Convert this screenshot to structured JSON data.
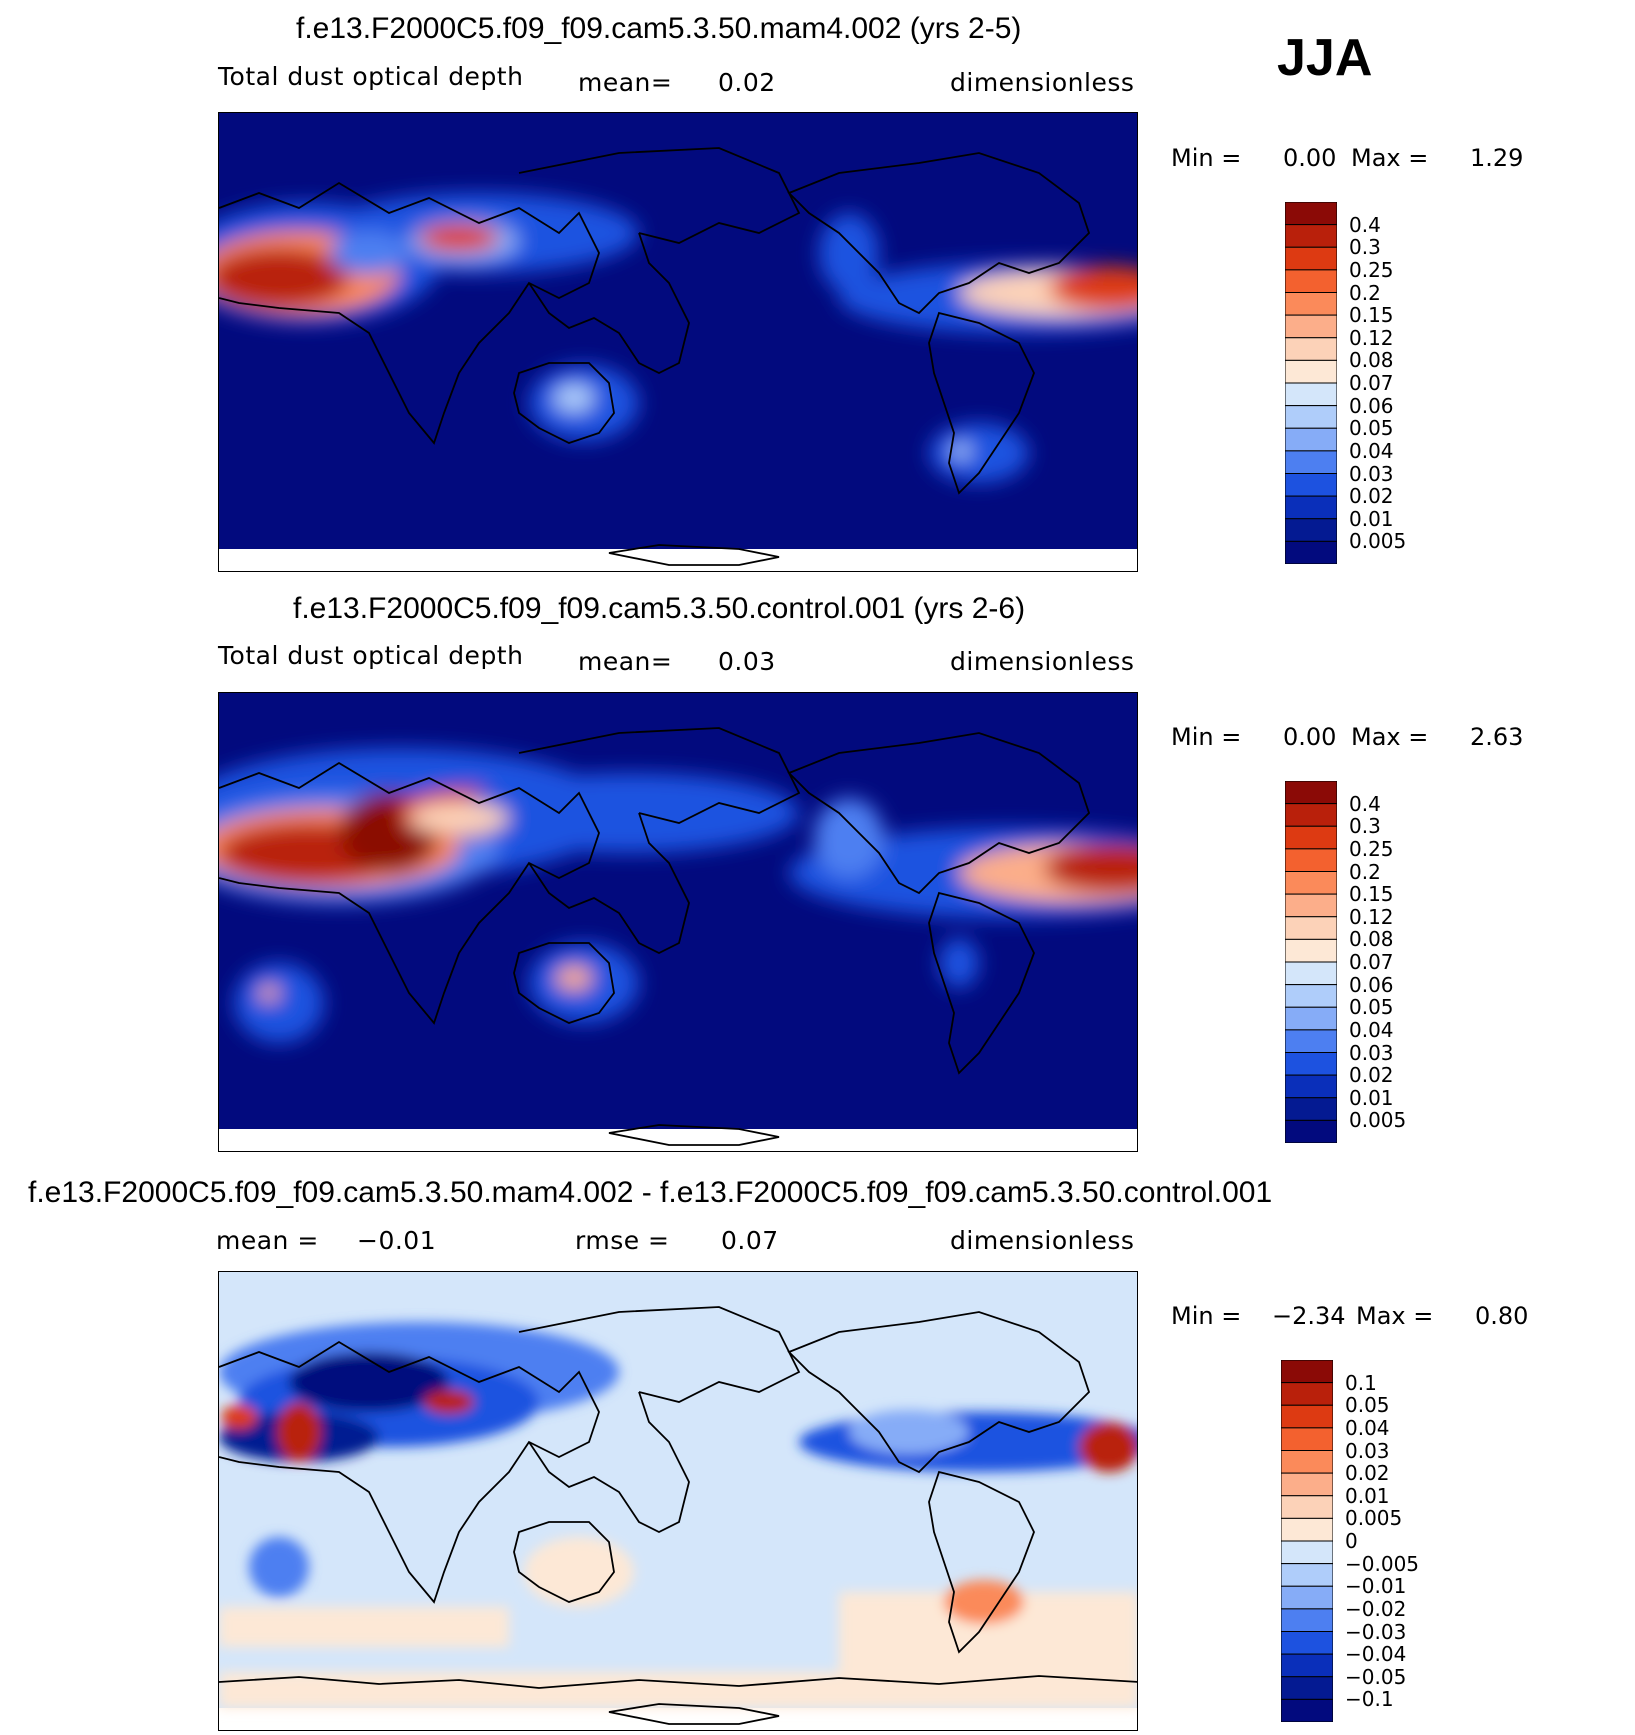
{
  "season": "JJA",
  "panels": [
    {
      "title": "f.e13.F2000C5.f09_f09.cam5.3.50.mam4.002 (yrs 2-5)",
      "variable": "Total dust optical depth",
      "stat1_label": "mean=",
      "stat1_value": "0.02",
      "stat2_label": "",
      "stat2_value": "",
      "units": "dimensionless",
      "min_label": "Min =",
      "min_value": "0.00",
      "max_label": "Max =",
      "max_value": "1.29",
      "colorbar": {
        "labels": [
          "0.4",
          "0.3",
          "0.25",
          "0.2",
          "0.15",
          "0.12",
          "0.08",
          "0.07",
          "0.06",
          "0.05",
          "0.04",
          "0.03",
          "0.02",
          "0.01",
          "0.005"
        ],
        "colors": [
          "#8b0a06",
          "#b9200b",
          "#dd3a12",
          "#f3612f",
          "#fb8a5a",
          "#fcae8a",
          "#fcd2b8",
          "#fde8d6",
          "#d4e6fa",
          "#afcdfa",
          "#86acf7",
          "#4d7ff1",
          "#1d52e0",
          "#0a2fba",
          "#041a92",
          "#020a7e"
        ]
      },
      "map": {
        "background": "#020a7e",
        "hotspots": []
      }
    },
    {
      "title": "f.e13.F2000C5.f09_f09.cam5.3.50.control.001 (yrs 2-6)",
      "variable": "Total dust optical depth",
      "stat1_label": "mean=",
      "stat1_value": "0.03",
      "stat2_label": "",
      "stat2_value": "",
      "units": "dimensionless",
      "min_label": "Min =",
      "min_value": "0.00",
      "max_label": "Max =",
      "max_value": "2.63",
      "colorbar": {
        "labels": [
          "0.4",
          "0.3",
          "0.25",
          "0.2",
          "0.15",
          "0.12",
          "0.08",
          "0.07",
          "0.06",
          "0.05",
          "0.04",
          "0.03",
          "0.02",
          "0.01",
          "0.005"
        ],
        "colors": [
          "#8b0a06",
          "#b9200b",
          "#dd3a12",
          "#f3612f",
          "#fb8a5a",
          "#fcae8a",
          "#fcd2b8",
          "#fde8d6",
          "#d4e6fa",
          "#afcdfa",
          "#86acf7",
          "#4d7ff1",
          "#1d52e0",
          "#0a2fba",
          "#041a92",
          "#020a7e"
        ]
      },
      "map": {
        "background": "#020a7e"
      }
    },
    {
      "title": "f.e13.F2000C5.f09_f09.cam5.3.50.mam4.002 - f.e13.F2000C5.f09_f09.cam5.3.50.control.001",
      "variable": "",
      "stat1_label": "mean =",
      "stat1_value": "−0.01",
      "stat2_label": "rmse =",
      "stat2_value": "0.07",
      "units": "dimensionless",
      "min_label": "Min =",
      "min_value": "−2.34",
      "max_label": "Max =",
      "max_value": "0.80",
      "colorbar": {
        "labels": [
          "0.1",
          "0.05",
          "0.04",
          "0.03",
          "0.02",
          "0.01",
          "0.005",
          "0",
          "−0.005",
          "−0.01",
          "−0.02",
          "−0.03",
          "−0.04",
          "−0.05",
          "−0.1"
        ],
        "colors": [
          "#8b0a06",
          "#b9200b",
          "#dd3a12",
          "#f3612f",
          "#fb8a5a",
          "#fcae8a",
          "#fcd2b8",
          "#fde8d6",
          "#d4e6fa",
          "#afcdfa",
          "#86acf7",
          "#4d7ff1",
          "#1d52e0",
          "#0a2fba",
          "#041a92",
          "#020a7e"
        ]
      },
      "map": {
        "background": "#d4e6fa"
      }
    }
  ]
}
